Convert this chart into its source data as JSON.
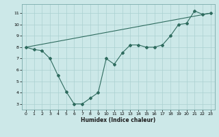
{
  "xlabel": "Humidex (Indice chaleur)",
  "xlim": [
    -0.5,
    23.5
  ],
  "ylim": [
    2.5,
    11.8
  ],
  "xticks": [
    0,
    1,
    2,
    3,
    4,
    5,
    6,
    7,
    8,
    9,
    10,
    11,
    12,
    13,
    14,
    15,
    16,
    17,
    18,
    19,
    20,
    21,
    22,
    23
  ],
  "yticks": [
    3,
    4,
    5,
    6,
    7,
    8,
    9,
    10,
    11
  ],
  "bg_color": "#cce8e8",
  "line_color": "#2e6b5e",
  "grid_color": "#aad0d0",
  "curve1_x": [
    0,
    1,
    2,
    3,
    4,
    5,
    6,
    7,
    8,
    9,
    10,
    11,
    12,
    13,
    14,
    15,
    16,
    17,
    18,
    19,
    20,
    21,
    22,
    23
  ],
  "curve1_y": [
    8.0,
    7.8,
    7.7,
    7.0,
    5.5,
    4.1,
    3.0,
    3.0,
    3.5,
    4.0,
    7.0,
    6.5,
    7.5,
    8.2,
    8.2,
    8.0,
    8.0,
    8.2,
    9.0,
    10.0,
    10.1,
    11.2,
    10.9,
    11.0
  ],
  "curve2_x": [
    0,
    23
  ],
  "curve2_y": [
    8.0,
    11.0
  ]
}
